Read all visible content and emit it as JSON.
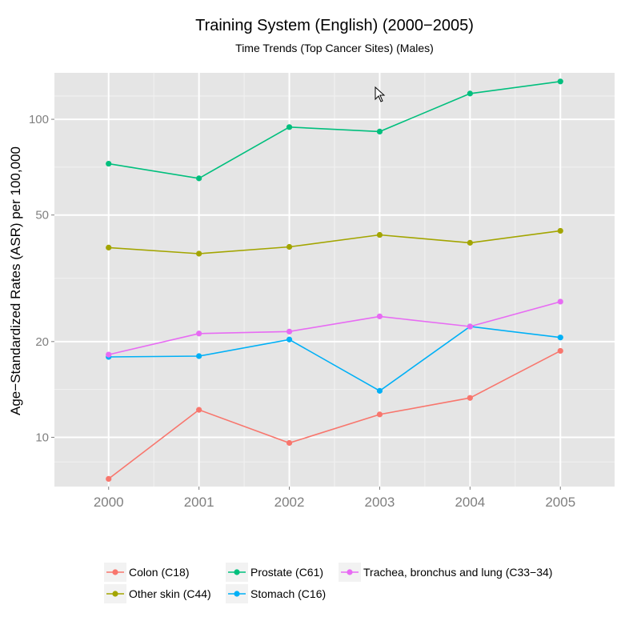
{
  "chart_data": {
    "type": "line",
    "title": "Training System (English) (2000−2005)",
    "subtitle": "Time Trends (Top Cancer Sites) (Males)",
    "xlabel": "",
    "ylabel": "Age−Standardized Rates (ASR) per 100,000",
    "y_scale": "log",
    "ylim": [
      7,
      140
    ],
    "xlim": [
      1999.4,
      2005.6
    ],
    "x": [
      2000,
      2001,
      2002,
      2003,
      2004,
      2005
    ],
    "x_ticks": [
      "2000",
      "2001",
      "2002",
      "2003",
      "2004",
      "2005"
    ],
    "y_ticks": [
      {
        "value": 10,
        "label": "10"
      },
      {
        "value": 20,
        "label": "20"
      },
      {
        "value": 50,
        "label": "50"
      },
      {
        "value": 100,
        "label": "100"
      }
    ],
    "grid": true,
    "legend_position": "bottom",
    "series": [
      {
        "name": "Colon (C18)",
        "color": "#F8766D",
        "values": [
          7.4,
          12.2,
          9.6,
          11.8,
          13.3,
          18.7
        ]
      },
      {
        "name": "Other skin (C44)",
        "color": "#A3A500",
        "values": [
          39.5,
          37.8,
          39.7,
          43.3,
          40.9,
          44.6
        ]
      },
      {
        "name": "Prostate (C61)",
        "color": "#00BF7D",
        "values": [
          72.5,
          65.2,
          94.5,
          91.5,
          120.5,
          131.5
        ]
      },
      {
        "name": "Stomach (C16)",
        "color": "#00B0F6",
        "values": [
          17.9,
          18.0,
          20.3,
          14.0,
          22.3,
          20.6
        ]
      },
      {
        "name": "Trachea, bronchus and lung (C33−34)",
        "color": "#E76BF3",
        "values": [
          18.2,
          21.2,
          21.5,
          24.0,
          22.3,
          26.7
        ]
      }
    ]
  }
}
